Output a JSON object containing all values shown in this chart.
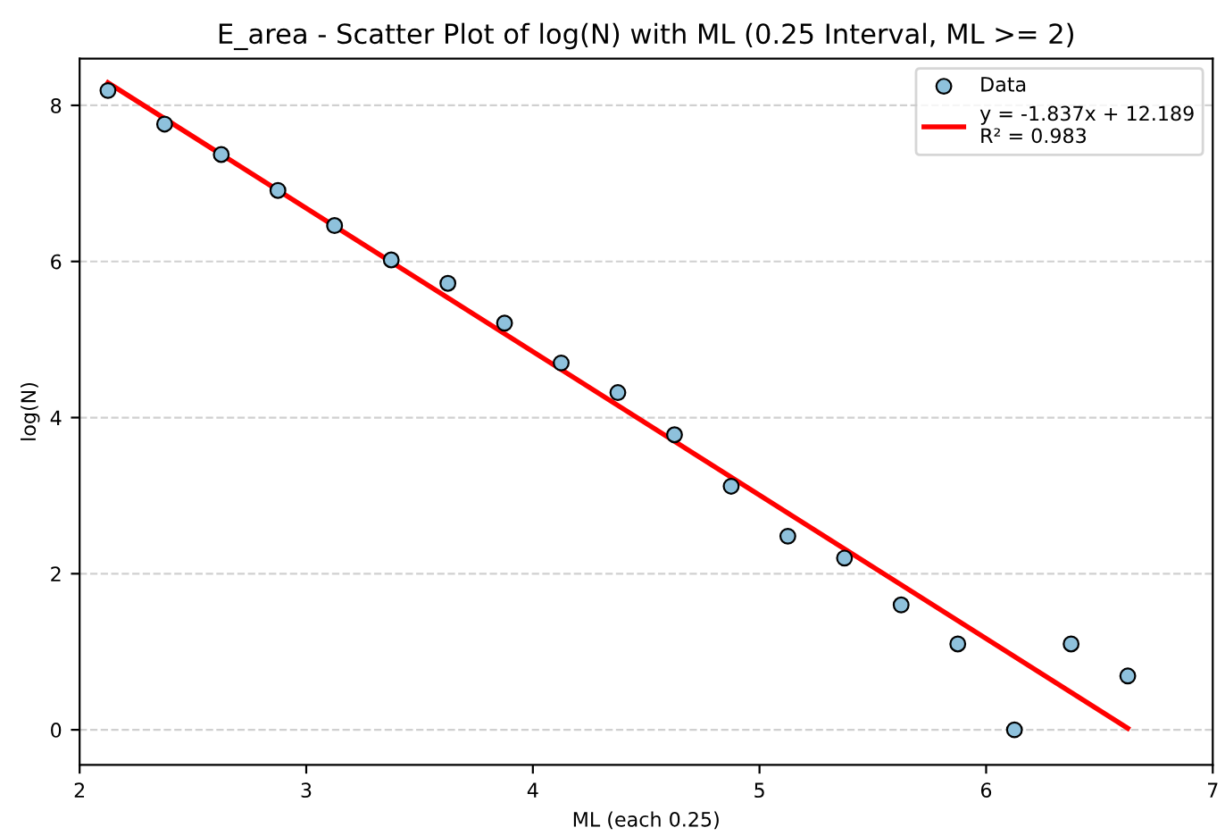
{
  "chart_data": {
    "type": "scatter",
    "title": "E_area - Scatter Plot of log(N) with ML (0.25 Interval, ML >= 2)",
    "xlabel": "ML (each 0.25)",
    "ylabel": "log(N)",
    "x": [
      2.125,
      2.375,
      2.625,
      2.875,
      3.125,
      3.375,
      3.625,
      3.875,
      4.125,
      4.375,
      4.625,
      4.875,
      5.125,
      5.375,
      5.625,
      5.875,
      6.125,
      6.375,
      6.625
    ],
    "series": [
      {
        "name": "Data",
        "color": "#8ec1dc",
        "marker": "circle",
        "values": [
          8.19,
          7.76,
          7.37,
          6.91,
          6.46,
          6.02,
          5.72,
          5.21,
          4.7,
          4.32,
          3.78,
          3.12,
          2.48,
          2.2,
          1.6,
          1.1,
          0,
          1.1,
          0.69
        ]
      },
      {
        "name": "y = -1.837x + 12.189\nR² = 0.983",
        "type": "line",
        "color": "#ff0000",
        "line_style": "solid",
        "x": [
          2.125,
          6.625
        ],
        "values": [
          8.29,
          0.02
        ]
      }
    ],
    "xlim": [
      2,
      7
    ],
    "ylim": [
      -0.45,
      8.6
    ],
    "xticks": [
      2,
      3,
      4,
      5,
      6,
      7
    ],
    "yticks": [
      0,
      2,
      4,
      6,
      8
    ],
    "grid": "y",
    "legend": "top right"
  }
}
